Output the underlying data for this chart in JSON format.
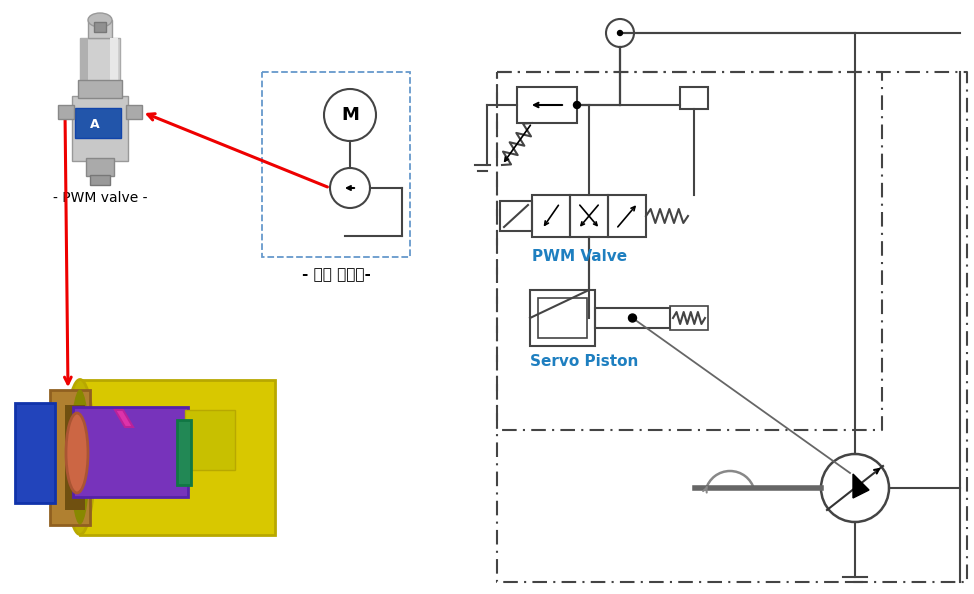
{
  "background_color": "#ffffff",
  "pwm_valve_label": "PWM Valve",
  "servo_piston_label": "Servo Piston",
  "pwm_valve_photo_label": "- PWM valve -",
  "external_hydraulic_label": "- 외부 유압원-",
  "label_color_blue": "#1e7fc0",
  "label_color_black": "#000000",
  "line_color": "#444444",
  "red_color": "#ee0000",
  "lw": 1.5,
  "lw_thick": 2.5,
  "font_size_label": 10,
  "font_size_valve": 11
}
